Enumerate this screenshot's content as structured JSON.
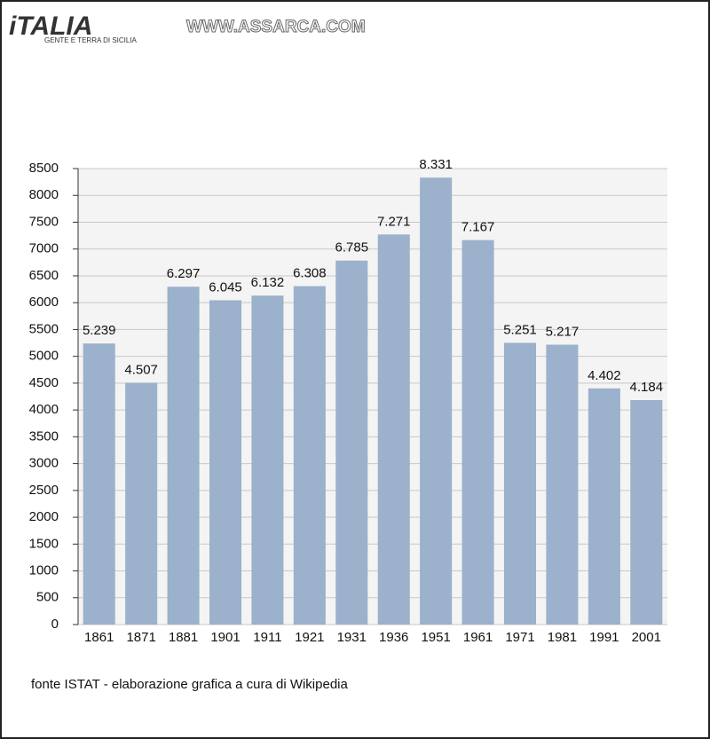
{
  "header": {
    "logo": "iTALIA",
    "logo_subtitle": "GENTE E TERRA DI SICILIA",
    "site": "WWW.ASSARCA.COM"
  },
  "chart_data": {
    "type": "bar",
    "categories": [
      "1861",
      "1871",
      "1881",
      "1901",
      "1911",
      "1921",
      "1931",
      "1936",
      "1951",
      "1961",
      "1971",
      "1981",
      "1991",
      "2001"
    ],
    "values": [
      5239,
      4507,
      6297,
      6045,
      6132,
      6308,
      6785,
      7271,
      8331,
      7167,
      5251,
      5217,
      4402,
      4184
    ],
    "value_labels": [
      "5.239",
      "4.507",
      "6.297",
      "6.045",
      "6.132",
      "6.308",
      "6.785",
      "7.271",
      "8.331",
      "7.167",
      "5.251",
      "5.217",
      "4.402",
      "4.184"
    ],
    "color": "#9bb1cc",
    "ylim": [
      0,
      8500
    ],
    "yticks": [
      0,
      500,
      1000,
      1500,
      2000,
      2500,
      3000,
      3500,
      4000,
      4500,
      5000,
      5500,
      6000,
      6500,
      7000,
      7500,
      8000,
      8500
    ],
    "grid": true,
    "caption": "fonte ISTAT - elaborazione grafica a cura di Wikipedia"
  }
}
